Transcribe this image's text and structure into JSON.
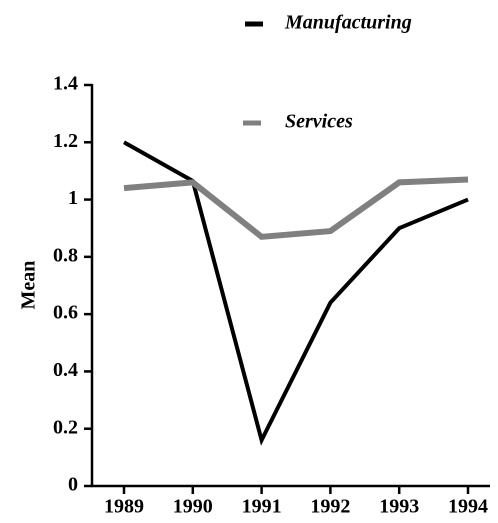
{
  "chart_data": {
    "type": "line",
    "y_label": "Mean",
    "categories": [
      "1989",
      "1990",
      "1991",
      "1992",
      "1993",
      "1994"
    ],
    "series": [
      {
        "name": "Manufacturing",
        "color": "#000000",
        "values": [
          1.2,
          1.065,
          0.16,
          0.64,
          0.9,
          1.0
        ]
      },
      {
        "name": "Services",
        "color": "#808080",
        "values": [
          1.04,
          1.06,
          0.87,
          0.89,
          1.06,
          1.07
        ]
      }
    ],
    "ylim": [
      0,
      1.4
    ],
    "yticks": [
      0,
      0.2,
      0.4,
      0.6,
      0.8,
      1,
      1.2,
      1.4
    ],
    "grid": false
  }
}
